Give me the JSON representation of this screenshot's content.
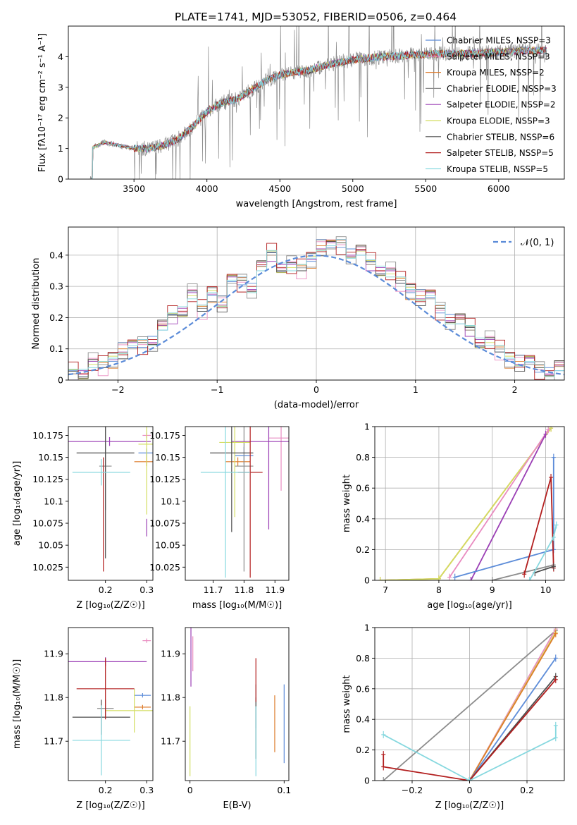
{
  "figure_title": "PLATE=1741, MJD=53052, FIBERID=0506, z=0.464",
  "colors": {
    "chabrier_miles": "#5b8bd8",
    "salpeter_miles": "#e98bc0",
    "kroupa_miles": "#dd7b2b",
    "chabrier_elodie": "#8c8c8c",
    "salpeter_elodie": "#9b3fb5",
    "kroupa_elodie": "#d3de62",
    "chabrier_stelib": "#4e4e4e",
    "salpeter_stelib": "#b21e1e",
    "kroupa_stelib": "#86d8df"
  },
  "chart_data": [
    {
      "id": "spectrum",
      "type": "line",
      "xlabel": "wavelength [Angstrom, rest frame]",
      "ylabel": "Flux [fλ10⁻¹⁷ erg cm⁻² s⁻¹ A⁻¹]",
      "xlim": [
        3050,
        6450
      ],
      "ylim": [
        0,
        5.0
      ],
      "xticks": [
        3500,
        4000,
        4500,
        5000,
        5500,
        6000
      ],
      "yticks": [
        0,
        1,
        2,
        3,
        4
      ],
      "legend": "top-right",
      "continuum": {
        "x": [
          3200,
          3300,
          3400,
          3500,
          3600,
          3700,
          3800,
          3900,
          4000,
          4100,
          4200,
          4300,
          4400,
          4500,
          4600,
          4700,
          4800,
          4900,
          5000,
          5200,
          5400,
          5600,
          5800,
          6000,
          6200,
          6300
        ],
        "y": [
          1.0,
          1.2,
          1.1,
          1.0,
          1.0,
          1.1,
          1.3,
          1.7,
          2.2,
          2.5,
          2.6,
          2.9,
          3.2,
          3.4,
          3.5,
          3.55,
          3.7,
          3.8,
          3.9,
          4.0,
          4.05,
          4.1,
          4.1,
          4.15,
          4.2,
          4.2
        ]
      },
      "series": [
        {
          "name": "Chabrier MILES, N_SSP=3"
        },
        {
          "name": "Salpeter MILES, N_SSP=3"
        },
        {
          "name": "Kroupa MILES, N_SSP=2"
        },
        {
          "name": "Chabrier ELODIE, N_SSP=3"
        },
        {
          "name": "Salpeter ELODIE, N_SSP=2"
        },
        {
          "name": "Kroupa ELODIE, N_SSP=3"
        },
        {
          "name": "Chabrier STELIB, N_SSP=6"
        },
        {
          "name": "Salpeter STELIB, N_SSP=5"
        },
        {
          "name": "Kroupa STELIB, N_SSP=5"
        }
      ]
    },
    {
      "id": "residuals",
      "type": "line",
      "xlabel": "(data-model)/error",
      "ylabel": "Normed distribution",
      "xlim": [
        -2.5,
        2.5
      ],
      "ylim": [
        0,
        0.49
      ],
      "xticks": [
        -2,
        -1,
        0,
        1,
        2
      ],
      "yticks": [
        0.0,
        0.1,
        0.2,
        0.3,
        0.4
      ],
      "grid": true,
      "legend": "top-right",
      "bin_width": 0.1,
      "reference": {
        "name": "𝒩(0, 1)",
        "mean": 0,
        "sigma": 1
      },
      "histogram_base": [
        0.02,
        0.03,
        0.05,
        0.04,
        0.07,
        0.1,
        0.1,
        0.12,
        0.13,
        0.16,
        0.2,
        0.23,
        0.27,
        0.22,
        0.28,
        0.25,
        0.31,
        0.32,
        0.3,
        0.35,
        0.4,
        0.37,
        0.36,
        0.35,
        0.39,
        0.43,
        0.42,
        0.44,
        0.41,
        0.4,
        0.37,
        0.36,
        0.34,
        0.31,
        0.29,
        0.27,
        0.26,
        0.23,
        0.2,
        0.18,
        0.16,
        0.13,
        0.12,
        0.09,
        0.07,
        0.06,
        0.05,
        0.04,
        0.03,
        0.03
      ]
    },
    {
      "id": "z-vs-age",
      "type": "scatter",
      "xlabel": "Z [log₁₀(Z/Z☉)]",
      "ylabel": "age  [log₁₀(age/yr)]",
      "xlim": [
        0.11,
        0.315
      ],
      "ylim": [
        10.01,
        10.185
      ],
      "xticks": [
        0.2,
        0.3
      ],
      "yticks": [
        10.025,
        10.05,
        10.075,
        10.1,
        10.125,
        10.15,
        10.175
      ],
      "points": [
        {
          "series": 0,
          "x": 0.3,
          "y": 10.155,
          "xerr": 0.02,
          "yerr": 0.005
        },
        {
          "series": 1,
          "x": 0.3,
          "y": 10.175,
          "xerr": 0.01,
          "yerr": 0.003
        },
        {
          "series": 2,
          "x": 0.3,
          "y": 10.145,
          "xerr": 0.03,
          "yerr": 0.005
        },
        {
          "series": 3,
          "x": 0.2,
          "y": 10.14,
          "xerr": 0.015,
          "yerr": 0.05
        },
        {
          "series": 4,
          "x": 0.21,
          "y": 10.168,
          "xerr": 0.1,
          "yerr": 0.005
        },
        {
          "series": 4,
          "x": 0.3,
          "y": 10.07,
          "xerr": 0.0,
          "yerr": 0.01
        },
        {
          "series": 5,
          "x": 0.3,
          "y": 10.165,
          "xerr": 0.02,
          "yerr": 0.08
        },
        {
          "series": 6,
          "x": 0.2,
          "y": 10.155,
          "xerr": 0.07,
          "yerr": 0.12
        },
        {
          "series": 7,
          "x": 0.195,
          "y": 10.085,
          "xerr": 0.0,
          "yerr": 0.065
        },
        {
          "series": 8,
          "x": 0.19,
          "y": 10.133,
          "xerr": 0.07,
          "yerr": 0.015
        }
      ]
    },
    {
      "id": "mass-vs-age",
      "type": "scatter",
      "xlabel": "mass [log₁₀(M/M☉)]",
      "ylabel": "",
      "xlim": [
        11.61,
        11.945
      ],
      "ylim": [
        10.01,
        10.185
      ],
      "xticks": [
        11.7,
        11.8,
        11.9
      ],
      "yticks": [
        10.025,
        10.05,
        10.075,
        10.1,
        10.125,
        10.15,
        10.175
      ],
      "points": [
        {
          "series": 0,
          "x": 11.8,
          "y": 10.152,
          "xerr": 0.03,
          "yerr": 0.01
        },
        {
          "series": 1,
          "x": 11.92,
          "y": 10.172,
          "xerr": 0.04,
          "yerr": 0.06
        },
        {
          "series": 2,
          "x": 11.78,
          "y": 10.145,
          "xerr": 0.04,
          "yerr": 0.005
        },
        {
          "series": 3,
          "x": 11.8,
          "y": 10.14,
          "xerr": 0.03,
          "yerr": 0.12
        },
        {
          "series": 4,
          "x": 11.88,
          "y": 10.168,
          "xerr": 0.12,
          "yerr": 0.1
        },
        {
          "series": 5,
          "x": 11.77,
          "y": 10.167,
          "xerr": 0.05,
          "yerr": 0.085
        },
        {
          "series": 6,
          "x": 11.76,
          "y": 10.155,
          "xerr": 0.07,
          "yerr": 0.09
        },
        {
          "series": 7,
          "x": 11.82,
          "y": 10.133,
          "xerr": 0.04,
          "yerr": 0.12
        },
        {
          "series": 8,
          "x": 11.74,
          "y": 10.133,
          "xerr": 0.08,
          "yerr": 0.12
        }
      ]
    },
    {
      "id": "age-vs-weight",
      "type": "line",
      "xlabel": "age  [log₁₀(age/yr)]",
      "ylabel": "mass weight",
      "xlim": [
        6.8,
        10.35
      ],
      "ylim": [
        0,
        1.0
      ],
      "xticks": [
        7,
        8,
        9,
        10
      ],
      "yticks": [
        0.0,
        0.2,
        0.4,
        0.6,
        0.8,
        1.0
      ],
      "grid": true,
      "lines": [
        {
          "series": 2,
          "x": [
            6.9,
            8.0,
            10.1
          ],
          "y": [
            0.0,
            0.01,
            0.99
          ]
        },
        {
          "series": 5,
          "x": [
            6.9,
            8.0,
            10.1
          ],
          "y": [
            0.0,
            0.01,
            0.99
          ]
        },
        {
          "series": 1,
          "x": [
            8.2,
            10.05
          ],
          "y": [
            0.02,
            0.98
          ]
        },
        {
          "series": 4,
          "x": [
            8.6,
            10.0
          ],
          "y": [
            0.0,
            0.95
          ]
        },
        {
          "series": 0,
          "x": [
            8.3,
            10.15,
            10.15
          ],
          "y": [
            0.02,
            0.2,
            0.8
          ]
        },
        {
          "series": 3,
          "x": [
            9.0,
            10.15
          ],
          "y": [
            0.0,
            0.1
          ]
        },
        {
          "series": 7,
          "x": [
            9.6,
            10.1,
            10.15
          ],
          "y": [
            0.04,
            0.67,
            0.08
          ]
        },
        {
          "series": 6,
          "x": [
            9.8,
            10.15
          ],
          "y": [
            0.05,
            0.09
          ]
        },
        {
          "series": 8,
          "x": [
            9.7,
            10.15,
            10.2
          ],
          "y": [
            0.0,
            0.28,
            0.36
          ]
        }
      ]
    },
    {
      "id": "z-vs-mass",
      "type": "scatter",
      "xlabel": "Z [log₁₀(Z/Z☉)]",
      "ylabel": "mass [log₁₀(M/M☉)]",
      "xlim": [
        0.11,
        0.315
      ],
      "ylim": [
        11.61,
        11.96
      ],
      "xticks": [
        0.2,
        0.3
      ],
      "yticks": [
        11.7,
        11.8,
        11.9
      ],
      "points": [
        {
          "series": 0,
          "x": 0.29,
          "y": 11.805,
          "xerr": 0.02,
          "yerr": 0.005
        },
        {
          "series": 1,
          "x": 0.3,
          "y": 11.93,
          "xerr": 0.01,
          "yerr": 0.005
        },
        {
          "series": 2,
          "x": 0.29,
          "y": 11.778,
          "xerr": 0.02,
          "yerr": 0.005
        },
        {
          "series": 3,
          "x": 0.2,
          "y": 11.775,
          "xerr": 0.02,
          "yerr": 0.02
        },
        {
          "series": 4,
          "x": 0.2,
          "y": 11.882,
          "xerr": 0.1,
          "yerr": 0.01
        },
        {
          "series": 5,
          "x": 0.27,
          "y": 11.77,
          "xerr": 0.07,
          "yerr": 0.05
        },
        {
          "series": 6,
          "x": 0.19,
          "y": 11.755,
          "xerr": 0.07,
          "yerr": 0.04
        },
        {
          "series": 7,
          "x": 0.2,
          "y": 11.82,
          "xerr": 0.07,
          "yerr": 0.07
        },
        {
          "series": 8,
          "x": 0.19,
          "y": 11.702,
          "xerr": 0.07,
          "yerr": 0.08
        }
      ]
    },
    {
      "id": "ebv-vs-mass",
      "type": "scatter",
      "xlabel": "E(B-V)",
      "ylabel": "",
      "xlim": [
        -0.005,
        0.105
      ],
      "ylim": [
        11.61,
        11.96
      ],
      "xticks": [
        0.0,
        0.1
      ],
      "yticks": [
        11.7,
        11.8,
        11.9
      ],
      "points": [
        {
          "series": 0,
          "x": 0.1,
          "y": 11.74,
          "xerr": 0.0,
          "yerr": 0.09
        },
        {
          "series": 1,
          "x": 0.003,
          "y": 11.9,
          "xerr": 0.0,
          "yerr": 0.04
        },
        {
          "series": 2,
          "x": 0.09,
          "y": 11.74,
          "xerr": 0.0,
          "yerr": 0.065
        },
        {
          "series": 3,
          "x": 0.07,
          "y": 11.78,
          "xerr": 0.0,
          "yerr": 0.05
        },
        {
          "series": 4,
          "x": 0.001,
          "y": 11.895,
          "xerr": 0.0,
          "yerr": 0.07
        },
        {
          "series": 5,
          "x": 0.0,
          "y": 11.7,
          "xerr": 0.0,
          "yerr": 0.08
        },
        {
          "series": 6,
          "x": 0.07,
          "y": 11.73,
          "xerr": 0.0,
          "yerr": 0.07
        },
        {
          "series": 7,
          "x": 0.07,
          "y": 11.84,
          "xerr": 0.0,
          "yerr": 0.05
        },
        {
          "series": 8,
          "x": 0.07,
          "y": 11.7,
          "xerr": 0.0,
          "yerr": 0.08
        }
      ]
    },
    {
      "id": "z-vs-weight",
      "type": "line",
      "xlabel": "Z [log₁₀(Z/Z☉)]",
      "ylabel": "mass weight",
      "xlim": [
        -0.33,
        0.33
      ],
      "ylim": [
        0,
        1.0
      ],
      "xticks": [
        -0.2,
        0.0,
        0.2
      ],
      "yticks": [
        0.0,
        0.2,
        0.4,
        0.6,
        0.8,
        1.0
      ],
      "grid": true,
      "lines": [
        {
          "series": 3,
          "x": [
            -0.3,
            0.3
          ],
          "y": [
            0.0,
            0.98
          ]
        },
        {
          "series": 1,
          "x": [
            0.0,
            0.3
          ],
          "y": [
            0.0,
            0.99
          ]
        },
        {
          "series": 5,
          "x": [
            0.0,
            0.3
          ],
          "y": [
            0.0,
            0.97
          ]
        },
        {
          "series": 2,
          "x": [
            0.0,
            0.3
          ],
          "y": [
            0.0,
            0.96
          ]
        },
        {
          "series": 0,
          "x": [
            0.0,
            0.3
          ],
          "y": [
            0.0,
            0.8
          ]
        },
        {
          "series": 6,
          "x": [
            0.0,
            0.3
          ],
          "y": [
            0.0,
            0.68
          ]
        },
        {
          "series": 7,
          "x": [
            -0.3,
            -0.3,
            0.0,
            0.3
          ],
          "y": [
            0.17,
            0.09,
            0.0,
            0.66
          ]
        },
        {
          "series": 8,
          "x": [
            -0.3,
            0.0,
            0.3,
            0.3
          ],
          "y": [
            0.3,
            0.0,
            0.28,
            0.36
          ]
        }
      ]
    }
  ]
}
